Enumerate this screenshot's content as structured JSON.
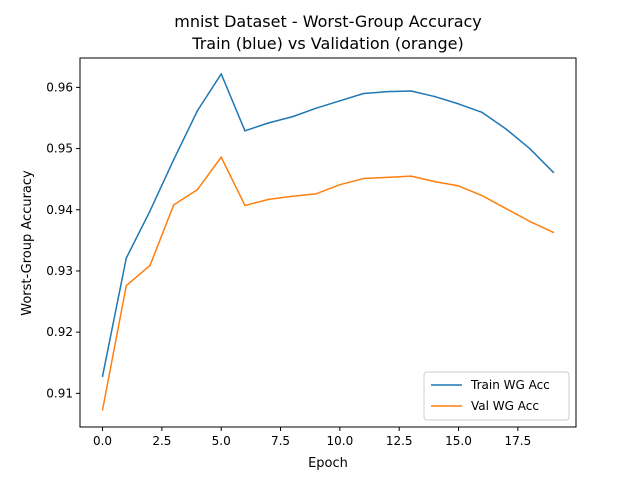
{
  "chart_data": {
    "type": "line",
    "title": [
      "mnist Dataset - Worst-Group Accuracy",
      "Train (blue) vs Validation (orange)"
    ],
    "xlabel": "Epoch",
    "ylabel": "Worst-Group Accuracy",
    "xlim": [
      -0.95,
      19.95
    ],
    "ylim": [
      0.9045,
      0.9648
    ],
    "xticks": [
      0.0,
      2.5,
      5.0,
      7.5,
      10.0,
      12.5,
      15.0,
      17.5
    ],
    "xtick_labels": [
      "0.0",
      "2.5",
      "5.0",
      "7.5",
      "10.0",
      "12.5",
      "15.0",
      "17.5"
    ],
    "yticks": [
      0.91,
      0.92,
      0.93,
      0.94,
      0.95,
      0.96
    ],
    "ytick_labels": [
      "0.91",
      "0.92",
      "0.93",
      "0.94",
      "0.95",
      "0.96"
    ],
    "grid": false,
    "legend_position": "lower-right",
    "x": [
      0,
      1,
      2,
      3,
      4,
      5,
      6,
      7,
      8,
      9,
      10,
      11,
      12,
      13,
      14,
      15,
      16,
      17,
      18,
      19
    ],
    "series": [
      {
        "name": "Train WG Acc",
        "color": "#1f77b4",
        "values": [
          0.9128,
          0.9321,
          0.9398,
          0.9482,
          0.9562,
          0.9622,
          0.9529,
          0.9542,
          0.9552,
          0.9566,
          0.9578,
          0.959,
          0.9593,
          0.9594,
          0.9585,
          0.9573,
          0.9559,
          0.9532,
          0.95,
          0.9461
        ]
      },
      {
        "name": "Val WG Acc",
        "color": "#ff7f0e",
        "values": [
          0.9073,
          0.9276,
          0.9309,
          0.9408,
          0.9433,
          0.9486,
          0.9407,
          0.9417,
          0.9422,
          0.9426,
          0.9441,
          0.9451,
          0.9453,
          0.9455,
          0.9446,
          0.9439,
          0.9423,
          0.9402,
          0.9381,
          0.9363
        ]
      }
    ]
  }
}
